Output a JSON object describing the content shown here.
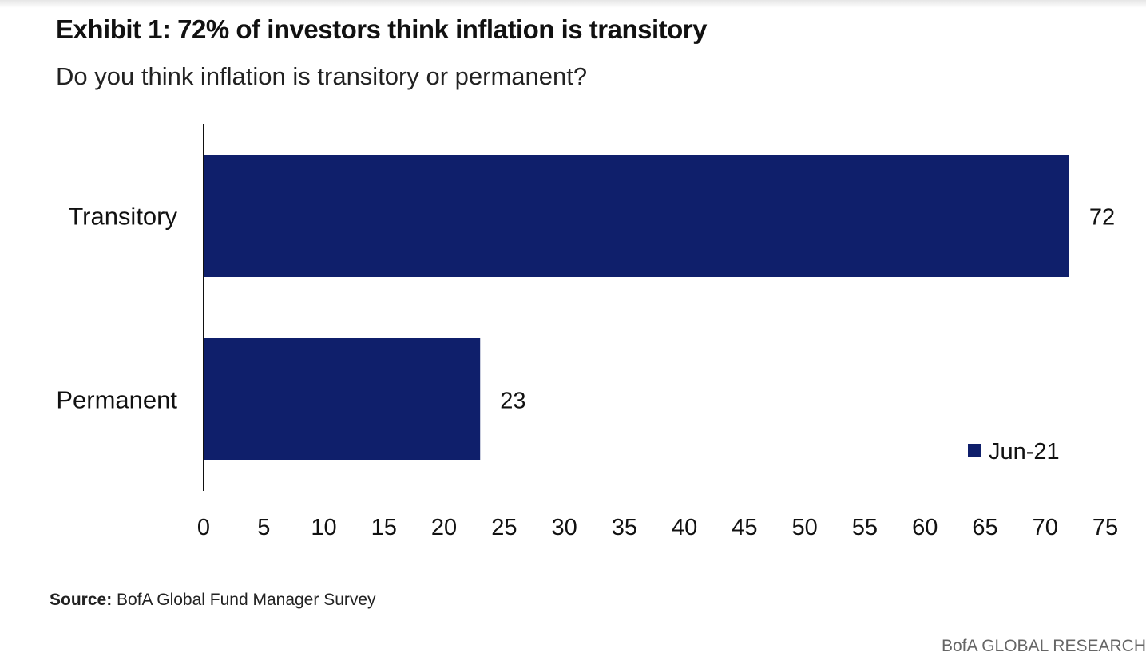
{
  "title": "Exhibit 1: 72% of investors think inflation is transitory",
  "subtitle": "Do you think inflation is transitory or permanent?",
  "source_label": "Source:",
  "source_text": "BofA Global Fund Manager Survey",
  "brand": "BofA GLOBAL RESEARCH",
  "chart_data": {
    "type": "bar",
    "orientation": "horizontal",
    "categories": [
      "Transitory",
      "Permanent"
    ],
    "series": [
      {
        "name": "Jun-21",
        "values": [
          72,
          23
        ],
        "color": "#0f1f6b"
      }
    ],
    "data_labels": [
      "72",
      "23"
    ],
    "xlim": [
      0,
      75
    ],
    "xticks": [
      0,
      5,
      10,
      15,
      20,
      25,
      30,
      35,
      40,
      45,
      50,
      55,
      60,
      65,
      70,
      75
    ],
    "grid": false,
    "legend_position": "bottom-right"
  }
}
